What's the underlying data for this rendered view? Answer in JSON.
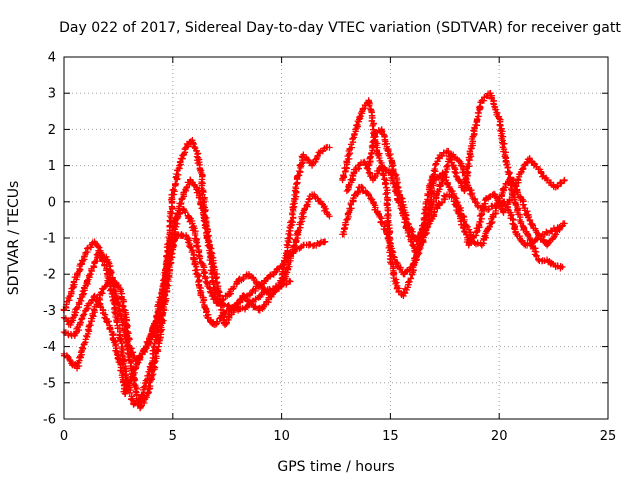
{
  "chart_data": {
    "type": "scatter",
    "title": "Day 022 of 2017, Sidereal Day-to-day VTEC variation (SDTVAR) for receiver gatt",
    "xlabel": "GPS time / hours",
    "ylabel": "SDTVAR / TECUs",
    "xlim": [
      0,
      25
    ],
    "ylim": [
      -6,
      4
    ],
    "xticks": [
      "0",
      "5",
      "10",
      "15",
      "20",
      "25"
    ],
    "yticks": [
      "4",
      "3",
      "2",
      "1",
      "0",
      "-1",
      "-2",
      "-3",
      "-4",
      "-5",
      "-6"
    ],
    "xtick_values": [
      0,
      5,
      10,
      15,
      20,
      25
    ],
    "ytick_values": [
      4,
      3,
      2,
      1,
      0,
      -1,
      -2,
      -3,
      -4,
      -5,
      -6
    ],
    "grid": true,
    "marker": "plus",
    "color": "#ff0000",
    "series": [
      {
        "x": [
          0.0,
          0.5,
          1.0,
          1.4,
          1.8,
          2.2,
          2.6,
          2.8,
          3.0,
          3.3,
          3.6,
          4.0,
          4.4,
          4.8,
          5.1,
          5.4,
          5.7,
          6.0,
          6.3,
          6.6,
          6.9,
          7.2,
          7.6,
          8.0,
          8.4,
          8.8,
          9.2,
          9.6,
          10.0,
          10.3,
          10.6,
          11.0,
          11.5,
          12.0
        ],
        "y": [
          -3.6,
          -3.7,
          -3.0,
          -2.6,
          -3.0,
          -3.6,
          -4.5,
          -5.3,
          -5.0,
          -4.6,
          -4.2,
          -3.7,
          -3.0,
          -1.7,
          -1.0,
          -0.9,
          -1.0,
          -1.6,
          -2.5,
          -3.2,
          -3.4,
          -3.2,
          -3.0,
          -2.8,
          -2.6,
          -2.4,
          -2.2,
          -2.0,
          -1.8,
          -1.5,
          -1.3,
          -1.2,
          -1.2,
          -1.1
        ]
      },
      {
        "x": [
          0.0,
          0.3,
          0.6,
          1.0,
          1.4,
          1.8,
          2.1,
          2.5,
          2.8,
          3.0,
          3.3,
          3.6,
          4.0,
          4.5,
          4.8,
          5.1,
          5.5,
          5.9,
          6.2,
          6.5,
          6.8,
          7.2,
          7.6,
          8.0,
          8.4,
          8.8,
          9.2,
          9.6,
          10.0,
          10.4
        ],
        "y": [
          -4.2,
          -4.4,
          -4.6,
          -3.8,
          -3.0,
          -2.4,
          -2.1,
          -2.3,
          -3.0,
          -4.0,
          -4.4,
          -4.2,
          -3.8,
          -2.5,
          -1.5,
          -0.5,
          -0.2,
          -0.6,
          -1.4,
          -2.1,
          -2.6,
          -2.8,
          -2.9,
          -3.0,
          -2.9,
          -2.7,
          -2.5,
          -2.4,
          -2.3,
          -2.2
        ]
      },
      {
        "x": [
          0.0,
          0.3,
          0.6,
          1.0,
          1.4,
          1.7,
          2.0,
          2.3,
          2.6,
          2.9,
          3.2,
          3.5,
          3.9,
          4.3,
          4.7,
          5.0,
          5.3,
          5.6,
          5.9,
          6.1,
          6.3,
          6.6,
          7.0,
          7.5,
          8.0,
          8.5,
          9.0,
          9.5,
          10.0,
          10.4,
          10.7,
          11.0,
          11.4,
          11.8,
          12.2
        ],
        "y": [
          -3.0,
          -2.6,
          -2.0,
          -1.4,
          -1.1,
          -1.4,
          -2.0,
          -2.8,
          -3.8,
          -5.0,
          -5.6,
          -5.5,
          -4.8,
          -3.6,
          -1.8,
          0.2,
          1.0,
          1.5,
          1.7,
          1.4,
          0.8,
          -1.0,
          -2.8,
          -2.6,
          -2.2,
          -2.0,
          -2.3,
          -2.6,
          -2.2,
          -0.8,
          0.5,
          1.3,
          1.0,
          1.4,
          1.5
        ]
      },
      {
        "x": [
          0.0,
          0.3,
          0.7,
          1.2,
          1.6,
          2.0,
          2.4,
          2.8,
          3.1,
          3.5,
          3.8,
          4.2,
          4.6,
          4.9,
          5.2,
          5.5,
          5.8,
          6.1,
          6.4,
          6.7,
          7.0,
          7.4,
          7.8,
          8.2,
          8.6,
          9.0,
          9.4,
          9.8,
          10.2,
          10.6,
          11.0,
          11.4,
          11.8,
          12.2
        ],
        "y": [
          -3.2,
          -3.4,
          -2.8,
          -2.0,
          -1.4,
          -1.6,
          -2.6,
          -3.6,
          -4.6,
          -5.7,
          -5.4,
          -4.4,
          -3.0,
          -1.6,
          -0.4,
          0.2,
          0.6,
          0.4,
          -0.3,
          -1.2,
          -2.1,
          -3.4,
          -3.0,
          -2.6,
          -2.8,
          -3.0,
          -2.7,
          -2.4,
          -2.0,
          -1.2,
          -0.3,
          0.2,
          0.0,
          -0.4
        ]
      },
      {
        "x": [
          12.8,
          13.1,
          13.4,
          13.7,
          14.0,
          14.4,
          14.8,
          15.0,
          15.3,
          15.6,
          16.0,
          16.4,
          16.8,
          17.2,
          17.6,
          18.0,
          18.4,
          18.8,
          19.2,
          19.6,
          20.0,
          20.3,
          20.6,
          21.0,
          21.4,
          21.8,
          22.2,
          22.6,
          22.9
        ],
        "y": [
          0.6,
          1.3,
          2.0,
          2.5,
          2.8,
          1.5,
          0.5,
          -1.5,
          -2.4,
          -2.6,
          -2.0,
          -1.0,
          0.4,
          1.2,
          1.4,
          0.8,
          0.3,
          1.8,
          2.8,
          3.0,
          2.3,
          1.2,
          0.3,
          -0.6,
          -1.0,
          -1.6,
          -1.6,
          -1.8,
          -1.8
        ]
      },
      {
        "x": [
          12.8,
          13.0,
          13.3,
          13.6,
          14.0,
          14.4,
          14.8,
          15.2,
          15.6,
          16.0,
          16.4,
          16.8,
          17.2,
          17.6,
          18.0,
          18.4,
          18.8,
          19.2,
          19.6,
          20.0,
          20.3,
          20.6,
          21.0,
          21.4,
          21.8,
          22.2,
          22.6,
          23.0
        ],
        "y": [
          -0.9,
          -0.5,
          0.1,
          0.4,
          0.2,
          -0.3,
          -0.8,
          -1.6,
          -2.0,
          -1.8,
          -1.2,
          -0.6,
          -0.1,
          0.2,
          0.1,
          -0.5,
          -1.1,
          -1.2,
          -0.6,
          0.0,
          0.5,
          0.6,
          0.1,
          -0.5,
          -0.9,
          -1.2,
          -0.9,
          -0.6
        ]
      },
      {
        "x": [
          13.0,
          13.4,
          13.8,
          14.2,
          14.6,
          15.0,
          15.4,
          15.8,
          16.2,
          16.6,
          17.0,
          17.4,
          17.8,
          18.2,
          18.6,
          19.0,
          19.4,
          19.8,
          20.2,
          20.6,
          21.0,
          21.4,
          21.8,
          22.2,
          22.6,
          23.0
        ],
        "y": [
          0.3,
          0.9,
          1.1,
          0.6,
          1.0,
          0.8,
          0.0,
          -0.8,
          -1.5,
          -0.8,
          0.6,
          0.8,
          0.3,
          -0.4,
          -1.2,
          -0.8,
          0.1,
          0.2,
          -0.3,
          0.2,
          0.8,
          1.2,
          0.9,
          0.6,
          0.4,
          0.6
        ]
      },
      {
        "x": [
          14.0,
          14.3,
          14.6,
          15.0,
          15.4,
          15.8,
          16.2,
          16.6,
          17.0,
          17.4,
          17.8,
          18.2,
          18.6,
          19.0,
          19.4,
          19.8,
          20.2,
          20.5,
          20.8,
          21.2,
          21.6,
          22.0,
          22.4,
          22.8
        ],
        "y": [
          1.0,
          1.9,
          2.0,
          1.2,
          0.3,
          -0.6,
          -1.1,
          -0.6,
          0.0,
          0.6,
          1.3,
          1.1,
          0.4,
          -0.1,
          -0.2,
          -0.1,
          0.0,
          -0.3,
          -0.9,
          -1.2,
          -1.1,
          -0.9,
          -0.8,
          -0.7
        ]
      }
    ]
  }
}
